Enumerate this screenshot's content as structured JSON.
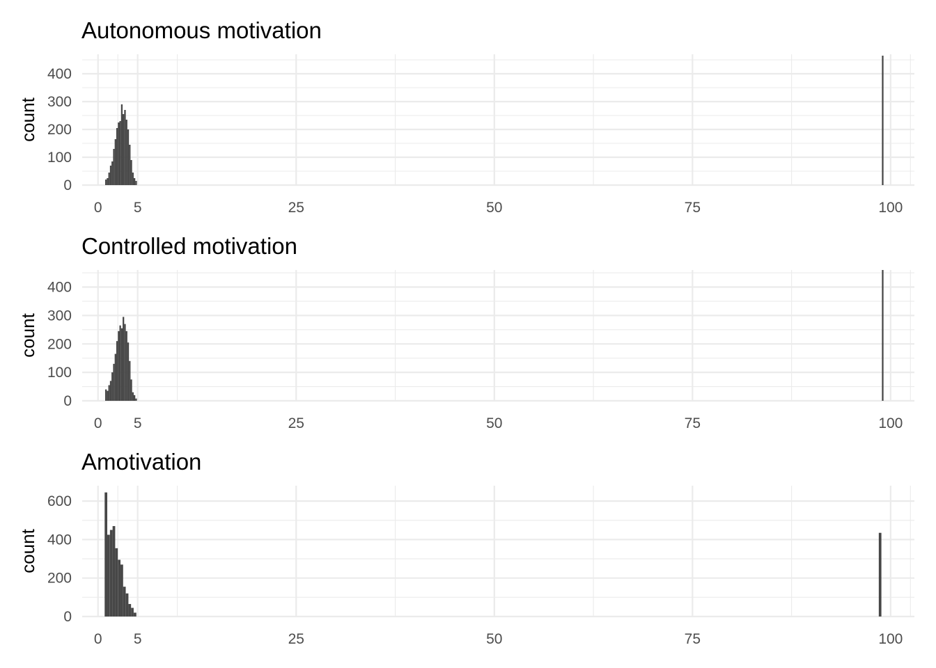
{
  "chart_data": [
    {
      "type": "histogram",
      "title": "Autonomous motivation",
      "xlabel": "",
      "ylabel": "count",
      "xlim": [
        -2,
        103
      ],
      "ylim": [
        0,
        470
      ],
      "x_ticks": [
        0,
        5,
        25,
        50,
        75,
        100
      ],
      "y_ticks": [
        0,
        100,
        200,
        300,
        400
      ],
      "grid": true,
      "bin_width": 0.2,
      "bars": [
        {
          "x": 1.0,
          "count": 20
        },
        {
          "x": 1.2,
          "count": 25
        },
        {
          "x": 1.4,
          "count": 45
        },
        {
          "x": 1.6,
          "count": 70
        },
        {
          "x": 1.8,
          "count": 85
        },
        {
          "x": 2.0,
          "count": 130
        },
        {
          "x": 2.2,
          "count": 165
        },
        {
          "x": 2.4,
          "count": 205
        },
        {
          "x": 2.6,
          "count": 225
        },
        {
          "x": 2.8,
          "count": 230
        },
        {
          "x": 3.0,
          "count": 290
        },
        {
          "x": 3.2,
          "count": 255
        },
        {
          "x": 3.4,
          "count": 270
        },
        {
          "x": 3.6,
          "count": 235
        },
        {
          "x": 3.8,
          "count": 200
        },
        {
          "x": 4.0,
          "count": 145
        },
        {
          "x": 4.2,
          "count": 90
        },
        {
          "x": 4.4,
          "count": 45
        },
        {
          "x": 4.6,
          "count": 25
        },
        {
          "x": 4.8,
          "count": 15
        },
        {
          "x": 99.0,
          "count": 465
        }
      ]
    },
    {
      "type": "histogram",
      "title": "Controlled motivation",
      "xlabel": "",
      "ylabel": "count",
      "xlim": [
        -2,
        103
      ],
      "ylim": [
        0,
        460
      ],
      "x_ticks": [
        0,
        5,
        25,
        50,
        75,
        100
      ],
      "y_ticks": [
        0,
        100,
        200,
        300,
        400
      ],
      "grid": true,
      "bin_width": 0.2,
      "bars": [
        {
          "x": 1.0,
          "count": 40
        },
        {
          "x": 1.2,
          "count": 35
        },
        {
          "x": 1.4,
          "count": 55
        },
        {
          "x": 1.6,
          "count": 70
        },
        {
          "x": 1.8,
          "count": 100
        },
        {
          "x": 2.0,
          "count": 130
        },
        {
          "x": 2.2,
          "count": 165
        },
        {
          "x": 2.4,
          "count": 210
        },
        {
          "x": 2.6,
          "count": 245
        },
        {
          "x": 2.8,
          "count": 265
        },
        {
          "x": 3.0,
          "count": 255
        },
        {
          "x": 3.2,
          "count": 295
        },
        {
          "x": 3.4,
          "count": 270
        },
        {
          "x": 3.6,
          "count": 245
        },
        {
          "x": 3.8,
          "count": 205
        },
        {
          "x": 4.0,
          "count": 140
        },
        {
          "x": 4.2,
          "count": 75
        },
        {
          "x": 4.4,
          "count": 30
        },
        {
          "x": 4.6,
          "count": 20
        },
        {
          "x": 4.8,
          "count": 8
        },
        {
          "x": 99.0,
          "count": 460
        }
      ]
    },
    {
      "type": "histogram",
      "title": "Amotivation",
      "xlabel": "",
      "ylabel": "count",
      "xlim": [
        -2,
        103
      ],
      "ylim": [
        0,
        680
      ],
      "x_ticks": [
        0,
        5,
        25,
        50,
        75,
        100
      ],
      "y_ticks": [
        0,
        200,
        400,
        600
      ],
      "grid": true,
      "bin_width": 0.33,
      "bars": [
        {
          "x": 1.0,
          "count": 645
        },
        {
          "x": 1.33,
          "count": 425
        },
        {
          "x": 1.67,
          "count": 450
        },
        {
          "x": 2.0,
          "count": 470
        },
        {
          "x": 2.33,
          "count": 355
        },
        {
          "x": 2.67,
          "count": 295
        },
        {
          "x": 3.0,
          "count": 270
        },
        {
          "x": 3.33,
          "count": 155
        },
        {
          "x": 3.67,
          "count": 120
        },
        {
          "x": 4.0,
          "count": 65
        },
        {
          "x": 4.33,
          "count": 45
        },
        {
          "x": 4.67,
          "count": 20
        },
        {
          "x": 98.67,
          "count": 435
        }
      ]
    }
  ]
}
